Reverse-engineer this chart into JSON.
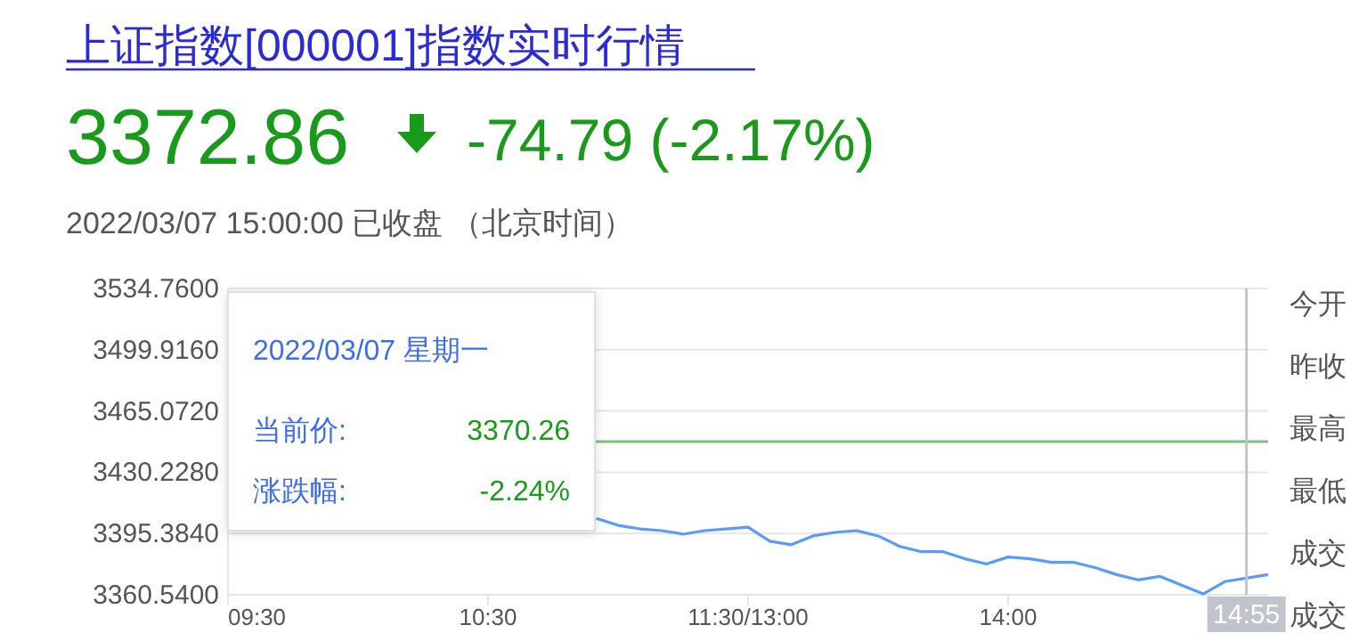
{
  "chart_data": {
    "type": "line",
    "title": "上证指数[000001]指数实时行情",
    "subtitle": "2022/03/07 15:00:00   已收盘 （北京时间）",
    "annotations": [
      "3372.86",
      "-74.79 (-2.17%)",
      "2022/03/07 星期一",
      "当前价:",
      "3370.26",
      "涨跌幅:",
      "-2.24%",
      "今开",
      "昨收",
      "最高",
      "最低",
      "成交",
      "成交"
    ],
    "categories": [
      "09:30",
      null,
      null,
      null,
      null,
      null,
      null,
      null,
      null,
      null,
      null,
      null,
      "10:30",
      null,
      null,
      null,
      null,
      null,
      null,
      null,
      null,
      null,
      null,
      null,
      "11:30/13:00",
      null,
      null,
      null,
      null,
      null,
      null,
      null,
      null,
      null,
      null,
      null,
      "14:00",
      null,
      null,
      null,
      null,
      null,
      null,
      null,
      null,
      null,
      null,
      "14:55",
      null
    ],
    "series": [
      {
        "color": "#5b9bf8",
        "values": [
          null,
          null,
          null,
          null,
          null,
          null,
          null,
          null,
          null,
          null,
          null,
          null,
          null,
          null,
          null,
          null,
          null,
          3404,
          3400,
          3398,
          3397,
          3395,
          3397,
          3398,
          3399,
          3391,
          3389,
          3394,
          3396,
          3397,
          3394,
          3388,
          3385,
          3385,
          3381,
          3378,
          3382,
          3381,
          3379,
          3379,
          3376,
          3372,
          3369,
          3371,
          3366,
          3361,
          3368,
          3370,
          3372
        ]
      }
    ],
    "ylim": [
      3360.54,
      3534.76
    ],
    "yticks": [
      {
        "value": 3534.76,
        "label": "3534.7600"
      },
      {
        "value": 3499.916,
        "label": "3499.9160"
      },
      {
        "value": 3465.072,
        "label": "3465.0720"
      },
      {
        "value": 3430.228,
        "label": "3430.2280"
      },
      {
        "value": 3395.384,
        "label": "3395.3840"
      },
      {
        "value": 3360.54,
        "label": "3360.5400"
      }
    ],
    "ref_lines": [
      {
        "axis": "y",
        "value": 3447.65,
        "color": "#7cc47c"
      },
      {
        "axis": "x",
        "value": "14:55",
        "color": "#c0c4cc"
      }
    ],
    "grid": true,
    "line_style": "solid",
    "marker": "none"
  }
}
